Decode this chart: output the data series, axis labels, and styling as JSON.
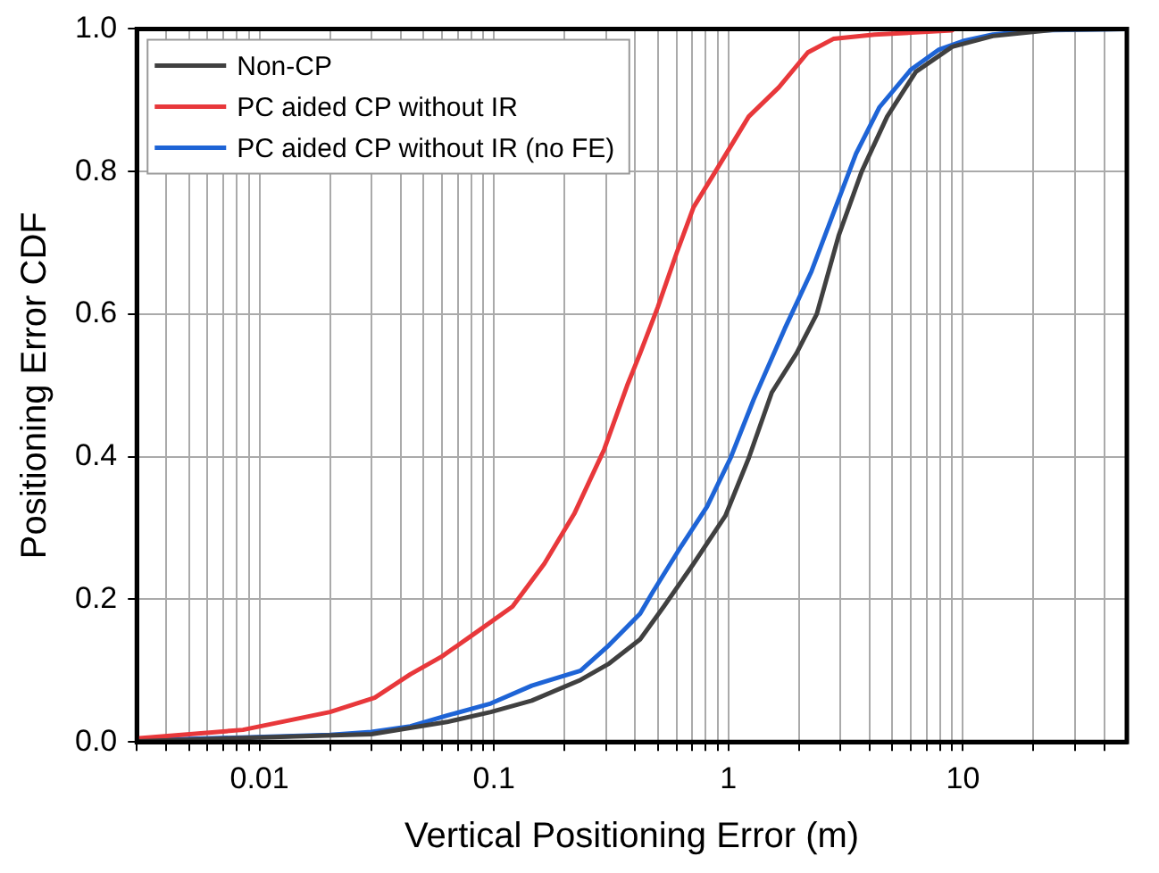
{
  "chart_data": {
    "type": "line",
    "xlabel": "Vertical Positioning Error (m)",
    "ylabel": "Positioning Error CDF",
    "log": "x",
    "grid": true,
    "legend": "top left",
    "marker": "none",
    "line_style": "solid",
    "xlim": [
      0.003,
      50
    ],
    "ylim": [
      0,
      1
    ],
    "xticks": [
      {
        "value": 0.003,
        "label": null
      },
      {
        "value": 0.004,
        "label": null
      },
      {
        "value": 0.005,
        "label": null
      },
      {
        "value": 0.006,
        "label": null
      },
      {
        "value": 0.007,
        "label": null
      },
      {
        "value": 0.008,
        "label": null
      },
      {
        "value": 0.009,
        "label": null
      },
      {
        "value": 0.01,
        "label": "0.01"
      },
      {
        "value": 0.02,
        "label": null
      },
      {
        "value": 0.03,
        "label": null
      },
      {
        "value": 0.04,
        "label": null
      },
      {
        "value": 0.05,
        "label": null
      },
      {
        "value": 0.06,
        "label": null
      },
      {
        "value": 0.07,
        "label": null
      },
      {
        "value": 0.08,
        "label": null
      },
      {
        "value": 0.09,
        "label": null
      },
      {
        "value": 0.1,
        "label": "0.1"
      },
      {
        "value": 0.2,
        "label": null
      },
      {
        "value": 0.3,
        "label": null
      },
      {
        "value": 0.4,
        "label": null
      },
      {
        "value": 0.5,
        "label": null
      },
      {
        "value": 0.6,
        "label": null
      },
      {
        "value": 0.7,
        "label": null
      },
      {
        "value": 0.8,
        "label": null
      },
      {
        "value": 0.9,
        "label": null
      },
      1,
      {
        "value": 2,
        "label": null
      },
      {
        "value": 3,
        "label": null
      },
      {
        "value": 4,
        "label": null
      },
      {
        "value": 5,
        "label": null
      },
      {
        "value": 6,
        "label": null
      },
      {
        "value": 7,
        "label": null
      },
      {
        "value": 8,
        "label": null
      },
      {
        "value": 9,
        "label": null
      },
      10,
      {
        "value": 20,
        "label": null
      },
      {
        "value": 30,
        "label": null
      },
      {
        "value": 40,
        "label": null
      }
    ],
    "yticks": [
      {
        "value": 0,
        "label": "0.0"
      },
      {
        "value": 0.2,
        "label": "0.2"
      },
      {
        "value": 0.4,
        "label": "0.4"
      },
      {
        "value": 0.6,
        "label": "0.6"
      },
      {
        "value": 0.8,
        "label": "0.8"
      },
      {
        "value": 1,
        "label": "1.0"
      }
    ],
    "series": [
      {
        "name": "Non-CP",
        "color": "#404040",
        "x": [
          0.003,
          0.03,
          0.063,
          0.097,
          0.145,
          0.234,
          0.31,
          0.42,
          0.53,
          0.71,
          0.97,
          1.22,
          1.53,
          1.95,
          2.38,
          2.95,
          3.7,
          4.75,
          6.3,
          9,
          13.4,
          24.6,
          50
        ],
        "values": [
          0.001,
          0.011,
          0.028,
          0.042,
          0.058,
          0.087,
          0.11,
          0.144,
          0.19,
          0.25,
          0.317,
          0.398,
          0.49,
          0.545,
          0.6,
          0.71,
          0.8,
          0.877,
          0.94,
          0.975,
          0.99,
          0.999,
          1
        ]
      },
      {
        "name": "PC aided CP without IR",
        "color": "#e8383b",
        "x": [
          0.003,
          0.0085,
          0.02,
          0.031,
          0.044,
          0.06,
          0.081,
          0.12,
          0.164,
          0.22,
          0.295,
          0.37,
          0.42,
          0.5,
          0.6,
          0.71,
          0.88,
          1.22,
          1.64,
          2.18,
          2.8,
          4.2,
          9
        ],
        "values": [
          0.005,
          0.017,
          0.042,
          0.062,
          0.095,
          0.12,
          0.15,
          0.19,
          0.25,
          0.32,
          0.41,
          0.5,
          0.545,
          0.61,
          0.685,
          0.75,
          0.8,
          0.877,
          0.918,
          0.967,
          0.986,
          0.992,
          0.998
        ]
      },
      {
        "name": "PC aided CP without IR (no FE)",
        "color": "#1e64d6",
        "x": [
          0.003,
          0.02,
          0.03,
          0.044,
          0.063,
          0.097,
          0.145,
          0.234,
          0.31,
          0.42,
          0.475,
          0.63,
          0.81,
          1.02,
          1.28,
          1.74,
          2.26,
          2.79,
          3.5,
          4.4,
          6,
          7.9,
          10,
          13.4,
          20.6,
          50
        ],
        "values": [
          0.002,
          0.01,
          0.014,
          0.022,
          0.037,
          0.054,
          0.079,
          0.1,
          0.136,
          0.18,
          0.21,
          0.275,
          0.33,
          0.398,
          0.48,
          0.58,
          0.66,
          0.74,
          0.825,
          0.89,
          0.943,
          0.971,
          0.983,
          0.992,
          0.998,
          1
        ]
      }
    ]
  }
}
